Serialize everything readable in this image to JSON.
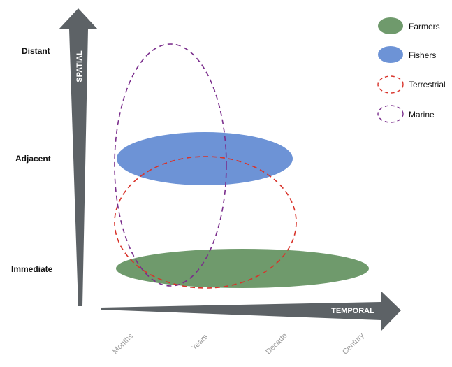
{
  "diagram": {
    "spatial_arrow_label": "SPATIAL",
    "temporal_arrow_label": "TEMPORAL",
    "spatial_levels": [
      "Distant",
      "Adjacent",
      "Immediate"
    ],
    "temporal_levels": [
      "Months",
      "Years",
      "Decade",
      "Century"
    ],
    "legend": [
      {
        "label": "Farmers",
        "style": "filled",
        "color": "#6f9a6c"
      },
      {
        "label": "Fishers",
        "style": "filled",
        "color": "#6d93d6"
      },
      {
        "label": "Terrestrial",
        "style": "dashed",
        "color": "#d8332a"
      },
      {
        "label": "Marine",
        "style": "dashed",
        "color": "#7a2d8c"
      }
    ],
    "arrow_color": "#5d6266"
  }
}
